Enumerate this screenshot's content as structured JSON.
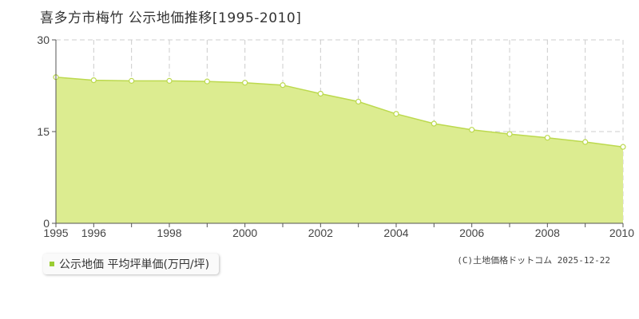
{
  "chart_data": {
    "type": "area",
    "title": "喜多方市梅竹  公示地価推移[1995-2010]",
    "x": [
      1995,
      1996,
      1997,
      1998,
      1999,
      2000,
      2001,
      2002,
      2003,
      2004,
      2005,
      2006,
      2007,
      2008,
      2009,
      2010
    ],
    "x_tick_labels": [
      "1995",
      "1996",
      "1998",
      "2000",
      "2002",
      "2004",
      "2006",
      "2008",
      "2010"
    ],
    "series": [
      {
        "name": "公示地価 平均坪単価(万円/坪)",
        "values": [
          23.9,
          23.4,
          23.3,
          23.3,
          23.2,
          23.0,
          22.6,
          21.2,
          19.9,
          17.9,
          16.3,
          15.3,
          14.6,
          14.0,
          13.3,
          12.5
        ]
      }
    ],
    "ylim": [
      0,
      30
    ],
    "y_ticks": [
      "0",
      "15",
      "30"
    ],
    "grid": true,
    "colors": {
      "fill": "#dcec90",
      "line": "#bcd94e",
      "grid": "#cccccc",
      "axis": "#555555"
    }
  },
  "legend": {
    "label": "公示地価 平均坪単価(万円/坪)",
    "color": "#9acd32"
  },
  "copyright": "(C)土地価格ドットコム 2025-12-22"
}
